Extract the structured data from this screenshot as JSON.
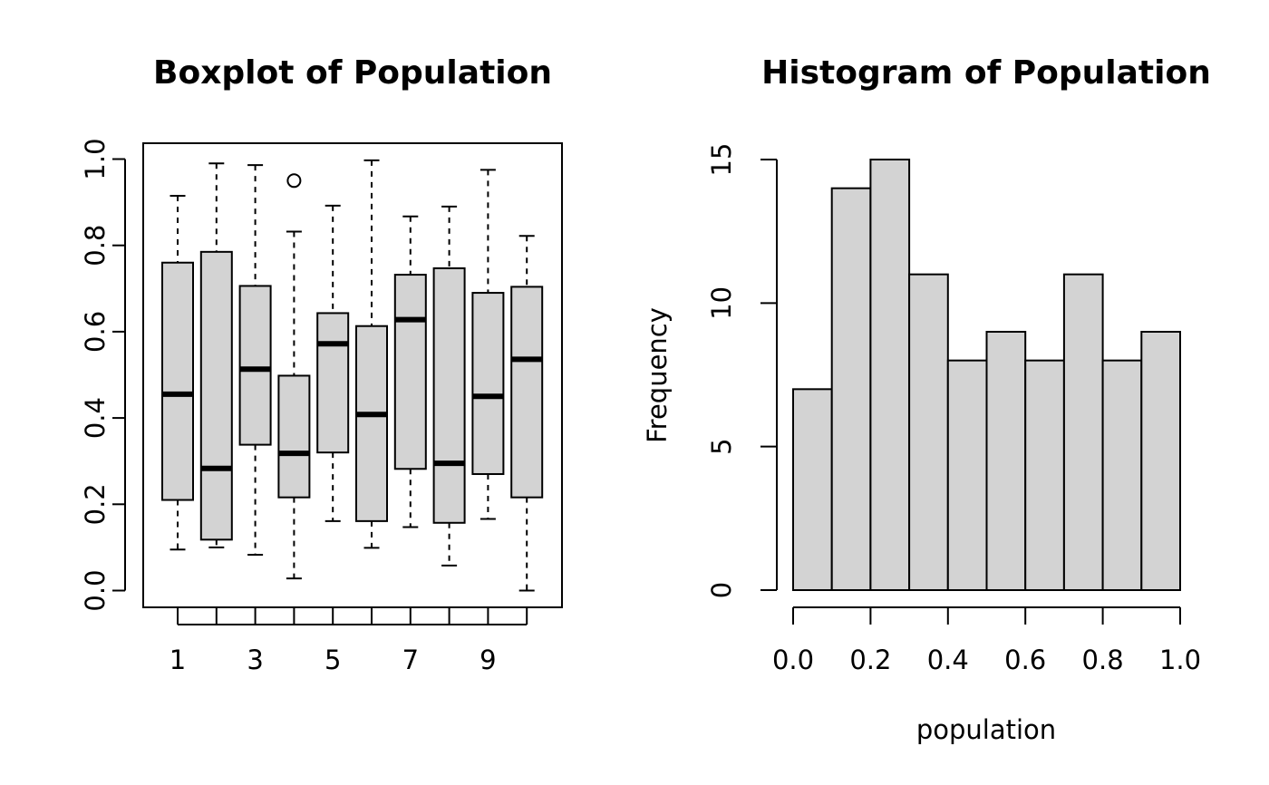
{
  "chart_data": [
    {
      "type": "box",
      "title": "Boxplot of Population",
      "xlabel": "",
      "ylabel": "",
      "ylim": [
        0,
        1
      ],
      "y_ticks": [
        0.0,
        0.2,
        0.4,
        0.6,
        0.8,
        1.0
      ],
      "y_tick_labels": [
        "0.0",
        "0.2",
        "0.4",
        "0.6",
        "0.8",
        "1.0"
      ],
      "x_tick_labels": [
        "1",
        "",
        "3",
        "",
        "5",
        "",
        "7",
        "",
        "9",
        ""
      ],
      "groups": [
        {
          "min": 0.095,
          "q1": 0.21,
          "median": 0.455,
          "q3": 0.76,
          "max": 0.915,
          "outliers": []
        },
        {
          "min": 0.1,
          "q1": 0.118,
          "median": 0.283,
          "q3": 0.785,
          "max": 0.99,
          "outliers": []
        },
        {
          "min": 0.083,
          "q1": 0.338,
          "median": 0.513,
          "q3": 0.706,
          "max": 0.986,
          "outliers": []
        },
        {
          "min": 0.028,
          "q1": 0.216,
          "median": 0.318,
          "q3": 0.498,
          "max": 0.832,
          "outliers": [
            0.95
          ]
        },
        {
          "min": 0.161,
          "q1": 0.32,
          "median": 0.572,
          "q3": 0.643,
          "max": 0.892,
          "outliers": []
        },
        {
          "min": 0.099,
          "q1": 0.161,
          "median": 0.408,
          "q3": 0.613,
          "max": 0.997,
          "outliers": []
        },
        {
          "min": 0.147,
          "q1": 0.282,
          "median": 0.628,
          "q3": 0.732,
          "max": 0.867,
          "outliers": []
        },
        {
          "min": 0.058,
          "q1": 0.157,
          "median": 0.295,
          "q3": 0.747,
          "max": 0.89,
          "outliers": []
        },
        {
          "min": 0.166,
          "q1": 0.27,
          "median": 0.45,
          "q3": 0.69,
          "max": 0.975,
          "outliers": []
        },
        {
          "min": 0.0,
          "q1": 0.216,
          "median": 0.536,
          "q3": 0.704,
          "max": 0.822,
          "outliers": []
        }
      ],
      "fill_color": "#d3d3d3"
    },
    {
      "type": "histogram",
      "title": "Histogram of Population",
      "xlabel": "population",
      "ylabel": "Frequency",
      "bins": [
        0.0,
        0.1,
        0.2,
        0.3,
        0.4,
        0.5,
        0.6,
        0.7,
        0.8,
        0.9,
        1.0
      ],
      "counts": [
        7,
        14,
        15,
        11,
        8,
        9,
        8,
        11,
        8,
        9
      ],
      "xlim": [
        0,
        1
      ],
      "ylim": [
        0,
        15
      ],
      "x_ticks": [
        0.0,
        0.2,
        0.4,
        0.6,
        0.8,
        1.0
      ],
      "x_tick_labels": [
        "0.0",
        "0.2",
        "0.4",
        "0.6",
        "0.8",
        "1.0"
      ],
      "y_ticks": [
        0,
        5,
        10,
        15
      ],
      "y_tick_labels": [
        "0",
        "5",
        "10",
        "15"
      ],
      "fill_color": "#d3d3d3"
    }
  ]
}
